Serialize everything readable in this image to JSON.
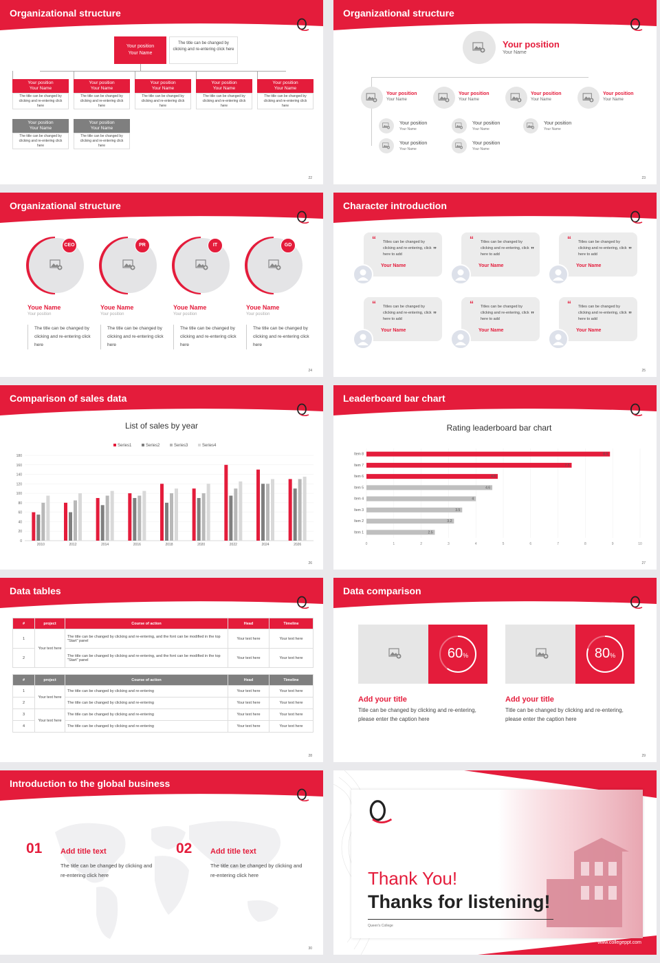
{
  "colors": {
    "accent": "#e41c3b",
    "gray": "#7f7f7f",
    "light": "#e6e6e6"
  },
  "s22": {
    "title": "Organizational structure",
    "num": "22",
    "top": {
      "line1": "Your position",
      "line2": "Your Name",
      "desc": "The title can be changed by clicking and re-entering click here"
    },
    "row1": [
      {
        "pos": "Your position",
        "name": "Your Name",
        "desc": "The title can be changed by clicking and re-entering click here"
      },
      {
        "pos": "Your position",
        "name": "Your Name",
        "desc": "The title can be changed by clicking and re-entering click here"
      },
      {
        "pos": "Your position",
        "name": "Your Name",
        "desc": "The title can be changed by clicking and re-entering click here"
      },
      {
        "pos": "Your position",
        "name": "Your Name",
        "desc": "The title can be changed by clicking and re-entering click here"
      },
      {
        "pos": "Your position",
        "name": "Your Name",
        "desc": "The title can be changed by clicking and re-entering click here"
      }
    ],
    "row2": [
      {
        "pos": "Your position",
        "name": "Your Name",
        "desc": "The title can be changed by clicking and re-entering click here"
      },
      {
        "pos": "Your position",
        "name": "Your Name",
        "desc": "The title can be changed by clicking and re-entering click here"
      }
    ]
  },
  "s23": {
    "title": "Organizational structure",
    "num": "23",
    "top": {
      "pos": "Your position",
      "name": "Your Name"
    },
    "row1": [
      {
        "pos": "Your position",
        "name": "Your Name"
      },
      {
        "pos": "Your position",
        "name": "Your Name"
      },
      {
        "pos": "Your position",
        "name": "Your Name"
      },
      {
        "pos": "Your position",
        "name": "Your Name"
      }
    ],
    "subs": [
      {
        "pos": "Your position",
        "name": "Your Name"
      },
      {
        "pos": "Your position",
        "name": "Your Name"
      },
      {
        "pos": "Your position",
        "name": "Your Name"
      },
      {
        "pos": "Your position",
        "name": "Your Name"
      },
      {
        "pos": "Your position",
        "name": "Your Name"
      }
    ]
  },
  "s24": {
    "title": "Organizational structure",
    "num": "24",
    "people": [
      {
        "badge": "CEO",
        "name": "Youe Name",
        "pos": "Your position",
        "desc": "The title can be changed by clicking and re-entering click here"
      },
      {
        "badge": "PR",
        "name": "Youe Name",
        "pos": "Your position",
        "desc": "The title can be changed by clicking and re-entering click here"
      },
      {
        "badge": "IT",
        "name": "Youe Name",
        "pos": "Your position",
        "desc": "The title can be changed by clicking and re-entering click here"
      },
      {
        "badge": "GD",
        "name": "Youe Name",
        "pos": "Your position",
        "desc": "The title can be changed by clicking and re-entering click here"
      }
    ]
  },
  "s25": {
    "title": "Character introduction",
    "num": "25",
    "cards": [
      {
        "text": "Titles can be changed by clicking and re-entering, click here to add",
        "name": "Your Name"
      },
      {
        "text": "Titles can be changed by clicking and re-entering, click here to add",
        "name": "Your Name"
      },
      {
        "text": "Titles can be changed by clicking and re-entering, click here to add",
        "name": "Your Name"
      },
      {
        "text": "Titles can be changed by clicking and re-entering, click here to add",
        "name": "Your Name"
      },
      {
        "text": "Titles can be changed by clicking and re-entering, click here to add",
        "name": "Your Name"
      },
      {
        "text": "Titles can be changed by clicking and re-entering, click here to add",
        "name": "Your Name"
      }
    ]
  },
  "s26": {
    "title": "Comparison of sales data",
    "num": "26"
  },
  "s27": {
    "title": "Leaderboard bar chart",
    "num": "27"
  },
  "s28": {
    "title": "Data tables",
    "num": "28",
    "t1": {
      "head": [
        "#",
        "project",
        "Course of action",
        "Head",
        "Timeline"
      ],
      "group": "Your text here",
      "rows": [
        {
          "n": "1",
          "action": "The title can be changed by clicking and re-entering, and the font can be modified in the top \"Start\" panel",
          "head": "Your text here",
          "time": "Your text here"
        },
        {
          "n": "2",
          "action": "The title can be changed by clicking and re-entering, and the font can be modified in the top \"Start\" panel",
          "head": "Your text here",
          "time": "Your text here"
        }
      ]
    },
    "t2": {
      "head": [
        "#",
        "project",
        "Course of action",
        "Head",
        "Timeline"
      ],
      "groups": [
        "Your text here",
        "Your text here"
      ],
      "rows": [
        {
          "n": "1",
          "action": "The title can be changed by clicking and re-entering",
          "head": "Your text here",
          "time": "Your text here"
        },
        {
          "n": "2",
          "action": "The title can be changed by clicking and re-entering",
          "head": "Your text here",
          "time": "Your text here"
        },
        {
          "n": "3",
          "action": "The title can be changed by clicking and re-entering",
          "head": "Your text here",
          "time": "Your text here"
        },
        {
          "n": "4",
          "action": "The title can be changed by clicking and re-entering",
          "head": "Your text here",
          "time": "Your text here"
        }
      ]
    }
  },
  "s29": {
    "title": "Data comparison",
    "num": "29",
    "items": [
      {
        "pct": "60",
        "unit": "%",
        "value": 60,
        "title": "Add your title",
        "desc": "Title can be changed by clicking and re-entering, please enter the caption here"
      },
      {
        "pct": "80",
        "unit": "%",
        "value": 80,
        "title": "Add your title",
        "desc": "Title can be changed by clicking and re-entering, please enter the caption here"
      }
    ]
  },
  "s30": {
    "title": "Introduction to the global business",
    "num": "30",
    "items": [
      {
        "num": "01",
        "title": "Add title text",
        "desc": "The title can be changed by clicking and re-entering click here"
      },
      {
        "num": "02",
        "title": "Add title text",
        "desc": "The title can be changed by clicking and re-entering click here"
      }
    ]
  },
  "s31": {
    "thanks": "Thank You!",
    "sub": "Thanks for listening!",
    "college": "Queen's College",
    "url": "www.collegeppt.com"
  },
  "chart_data": [
    {
      "type": "bar",
      "title": "List of sales by year",
      "categories": [
        "2010",
        "2012",
        "2014",
        "2016",
        "2018",
        "2020",
        "2022",
        "2024",
        "2026"
      ],
      "series": [
        {
          "name": "Series1",
          "values": [
            60,
            80,
            90,
            100,
            120,
            110,
            160,
            150,
            130
          ]
        },
        {
          "name": "Series2",
          "values": [
            55,
            60,
            75,
            90,
            80,
            90,
            95,
            120,
            110
          ]
        },
        {
          "name": "Series3",
          "values": [
            80,
            85,
            95,
            95,
            100,
            100,
            110,
            120,
            130
          ]
        },
        {
          "name": "Series4",
          "values": [
            95,
            100,
            105,
            105,
            110,
            120,
            125,
            130,
            135
          ]
        }
      ],
      "yticks": [
        "0",
        "20",
        "40",
        "60",
        "80",
        "100",
        "120",
        "140",
        "160",
        "180"
      ],
      "ylim": [
        0,
        180
      ],
      "legend": "top"
    },
    {
      "type": "bar",
      "orientation": "horizontal",
      "title": "Rating leaderboard bar chart",
      "categories": [
        "Item 1",
        "Item 2",
        "Item 3",
        "Item 4",
        "Item 5",
        "Item 6",
        "Item 7",
        "Item 8"
      ],
      "values": [
        2.5,
        3.2,
        3.5,
        4,
        4.6,
        4.8,
        7.5,
        8.9
      ],
      "labels": [
        "2.5",
        "3.2",
        "3.5",
        "4",
        "4.6",
        "4.8",
        "7.5",
        "8.9"
      ],
      "xticks": [
        "0",
        "1",
        "2",
        "3",
        "4",
        "5",
        "6",
        "7",
        "8",
        "9",
        "10"
      ],
      "xlim": [
        0,
        10
      ]
    }
  ]
}
